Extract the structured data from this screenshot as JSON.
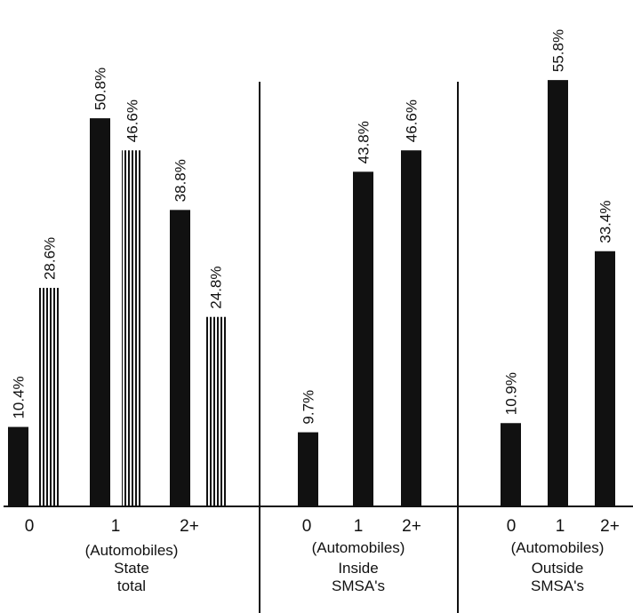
{
  "chart_data": {
    "type": "bar",
    "ylim": [
      0,
      60
    ],
    "units_label": "(Automobiles)",
    "colors": {
      "solid": "#111111",
      "hatched_stripe": "#111111",
      "background": "#ffffff"
    },
    "panels": [
      {
        "label_line1": "State",
        "label_line2": "total",
        "categories": [
          "0",
          "1",
          "2+"
        ],
        "series": [
          {
            "style": "solid",
            "values": [
              10.4,
              50.8,
              38.8
            ],
            "labels": [
              "10.4%",
              "50.8%",
              "38.8%"
            ]
          },
          {
            "style": "hatched",
            "values": [
              28.6,
              46.6,
              24.8
            ],
            "labels": [
              "28.6%",
              "46.6%",
              "24.8%"
            ]
          }
        ]
      },
      {
        "label_line1": "Inside",
        "label_line2": "SMSA's",
        "categories": [
          "0",
          "1",
          "2+"
        ],
        "series": [
          {
            "style": "solid",
            "values": [
              9.7,
              43.8,
              46.6
            ],
            "labels": [
              "9.7%",
              "43.8%",
              "46.6%"
            ]
          }
        ]
      },
      {
        "label_line1": "Outside",
        "label_line2": "SMSA's",
        "categories": [
          "0",
          "1",
          "2+"
        ],
        "series": [
          {
            "style": "solid",
            "values": [
              10.9,
              55.8,
              33.4
            ],
            "labels": [
              "10.9%",
              "55.8%",
              "33.4%"
            ]
          }
        ]
      }
    ]
  }
}
